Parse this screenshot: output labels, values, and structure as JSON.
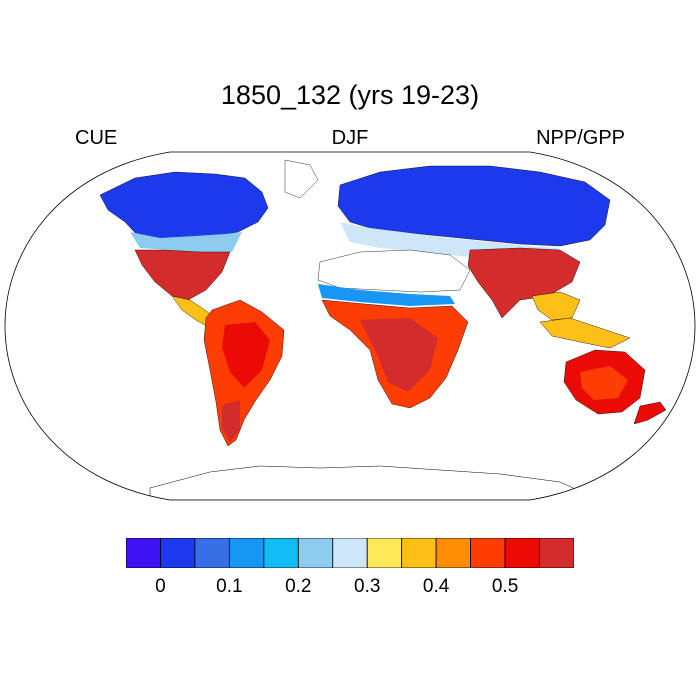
{
  "title": "1850_132 (yrs 19-23)",
  "subtitle_left": "CUE",
  "subtitle_center": "DJF",
  "subtitle_right": "NPP/GPP",
  "colorbar": {
    "colors": [
      "#3d12f5",
      "#1c3aeb",
      "#376fe6",
      "#1796f4",
      "#13bcf5",
      "#8dcbef",
      "#cde7f8",
      "#fde85a",
      "#fec016",
      "#fe8c04",
      "#fe3d05",
      "#e90b04",
      "#d42c2c"
    ],
    "ticks": [
      {
        "label": "0",
        "boundary": 1
      },
      {
        "label": "0.1",
        "boundary": 3
      },
      {
        "label": "0.2",
        "boundary": 5
      },
      {
        "label": "0.3",
        "boundary": 7
      },
      {
        "label": "0.4",
        "boundary": 9
      },
      {
        "label": "0.5",
        "boundary": 11
      }
    ]
  }
}
